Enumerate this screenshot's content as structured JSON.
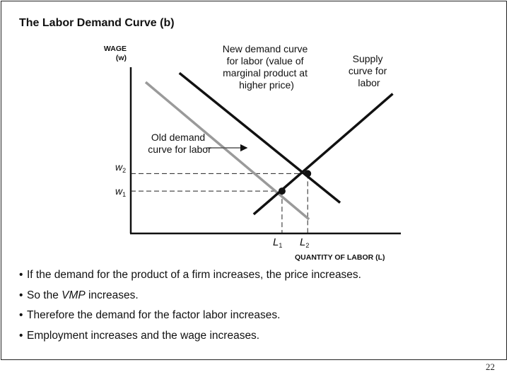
{
  "chart_data": {
    "type": "line",
    "title": "The Labor Demand Curve (b)",
    "ylabel_line1": "WAGE",
    "ylabel_line2": "(w)",
    "xlabel": "QUANTITY OF LABOR (L)",
    "xlim": [
      0,
      10
    ],
    "ylim": [
      0,
      10
    ],
    "grid": false,
    "series": [
      {
        "name": "Old demand curve for labor",
        "color": "#9a9a9a",
        "points": [
          [
            0.55,
            9.1
          ],
          [
            6.6,
            0.85
          ]
        ]
      },
      {
        "name": "New demand curve for labor (value of marginal product at higher price)",
        "color": "#111111",
        "points": [
          [
            1.8,
            9.65
          ],
          [
            7.75,
            1.85
          ]
        ]
      },
      {
        "name": "Supply curve for labor",
        "color": "#111111",
        "points": [
          [
            4.55,
            1.15
          ],
          [
            9.7,
            8.4
          ]
        ]
      }
    ],
    "equilibria": [
      {
        "x": 5.6,
        "y": 2.55,
        "x_label": "L1",
        "y_label": "w1"
      },
      {
        "x": 6.55,
        "y": 3.6,
        "x_label": "L2",
        "y_label": "w2"
      }
    ],
    "shift_arrow": {
      "from": [
        2.8,
        5.15
      ],
      "to": [
        4.3,
        5.15
      ]
    },
    "annotations": {
      "new_demand": [
        "New demand curve",
        "for labor (value of",
        "marginal product at",
        "higher price)"
      ],
      "supply": [
        "Supply",
        "curve for",
        "labor"
      ],
      "old_demand": [
        "Old demand",
        "curve for labor"
      ]
    },
    "tick_labels": {
      "w1_base": "w",
      "w1_sub": "1",
      "w2_base": "w",
      "w2_sub": "2",
      "L1_base": "L",
      "L1_sub": "1",
      "L2_base": "L",
      "L2_sub": "2"
    }
  },
  "bullets": [
    {
      "pre": "If the demand for the product of a firm increases, the price increases.",
      "em": "",
      "post": ""
    },
    {
      "pre": "So the ",
      "em": "VMP",
      "post": " increases."
    },
    {
      "pre": "Therefore the demand for the factor labor increases.",
      "em": "",
      "post": ""
    },
    {
      "pre": "Employment increases and the wage increases.",
      "em": "",
      "post": ""
    }
  ],
  "bullet_char": "•",
  "page_number": "22"
}
